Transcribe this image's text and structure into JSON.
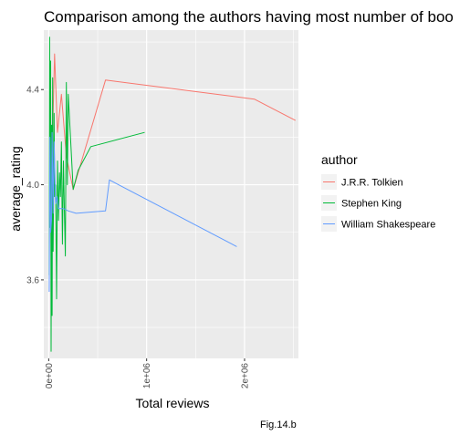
{
  "chart_data": {
    "type": "line",
    "title": "Comparison among the authors having most number of boo",
    "xlabel": "Total reviews",
    "ylabel": "average_rating",
    "xlim": [
      -50000,
      2550000
    ],
    "ylim": [
      3.27,
      4.65
    ],
    "x_ticks": [
      {
        "value": 0,
        "label": "0e+00"
      },
      {
        "value": 1000000,
        "label": "1e+06"
      },
      {
        "value": 2000000,
        "label": "2e+06"
      }
    ],
    "y_ticks": [
      {
        "value": 3.6,
        "label": "3.6"
      },
      {
        "value": 4.0,
        "label": "4.0"
      },
      {
        "value": 4.4,
        "label": "4.4"
      }
    ],
    "grid": true,
    "legend": {
      "title": "author",
      "position": "right"
    },
    "caption": "Fig.14.b",
    "series": [
      {
        "name": "J.R.R. Tolkien",
        "color": "#F8766D",
        "x": [
          30000,
          60000,
          90000,
          130000,
          180000,
          250000,
          580000,
          2100000,
          2520000
        ],
        "y": [
          4.05,
          4.55,
          4.22,
          4.38,
          4.12,
          3.98,
          4.44,
          4.36,
          4.27
        ]
      },
      {
        "name": "Stephen King",
        "color": "#00BA38",
        "x": [
          5000,
          10000,
          15000,
          20000,
          25000,
          30000,
          35000,
          40000,
          45000,
          55000,
          60000,
          70000,
          80000,
          90000,
          100000,
          110000,
          120000,
          130000,
          140000,
          150000,
          160000,
          170000,
          180000,
          190000,
          200000,
          250000,
          300000,
          430000,
          980000
        ],
        "y": [
          3.62,
          4.62,
          3.82,
          4.52,
          3.3,
          4.25,
          3.45,
          4.45,
          3.72,
          4.3,
          3.95,
          4.0,
          3.52,
          4.1,
          3.85,
          4.05,
          3.95,
          4.18,
          3.75,
          4.1,
          3.9,
          3.7,
          4.43,
          4.0,
          4.38,
          3.98,
          4.06,
          4.16,
          4.22
        ]
      },
      {
        "name": "William Shakespeare",
        "color": "#619CFF",
        "x": [
          5000,
          12000,
          20000,
          28000,
          35000,
          45000,
          55000,
          70000,
          85000,
          100000,
          150000,
          200000,
          280000,
          580000,
          620000,
          1920000
        ],
        "y": [
          3.55,
          4.2,
          3.8,
          3.85,
          4.22,
          3.88,
          4.18,
          3.92,
          3.95,
          3.9,
          3.9,
          3.89,
          3.88,
          3.89,
          4.02,
          3.74
        ]
      }
    ]
  }
}
